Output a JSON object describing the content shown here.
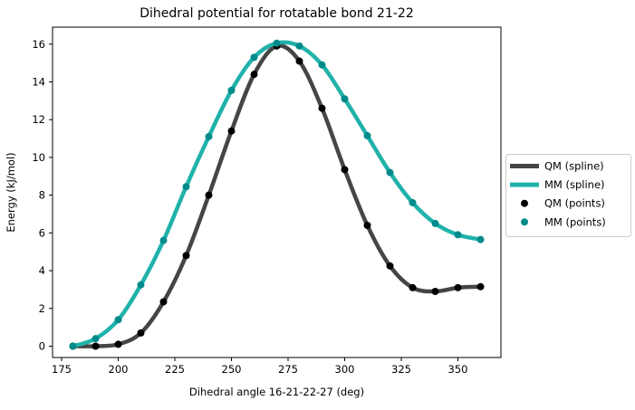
{
  "chart_data": {
    "type": "line",
    "subtype": "spline-with-scatter",
    "title": "Dihedral potential for rotatable bond 21-22",
    "xlabel": "Dihedral angle 16-21-22-27 (deg)",
    "ylabel": "Energy (kJ/mol)",
    "x": [
      180,
      190,
      200,
      210,
      220,
      230,
      240,
      250,
      260,
      270,
      280,
      290,
      300,
      310,
      320,
      330,
      340,
      350,
      360
    ],
    "series": [
      {
        "name": "QM (spline)",
        "kind": "spline",
        "color": "#454545",
        "line_width": 4.5,
        "values": [
          0.0,
          0.0,
          0.1,
          0.7,
          2.35,
          4.8,
          8.0,
          11.4,
          14.4,
          15.9,
          15.1,
          12.6,
          9.35,
          6.4,
          4.25,
          3.1,
          2.9,
          3.1,
          3.15
        ]
      },
      {
        "name": "MM (spline)",
        "kind": "spline",
        "color": "#20b2aa",
        "line_width": 4.5,
        "values": [
          0.0,
          0.4,
          1.4,
          3.25,
          5.6,
          8.45,
          11.1,
          13.55,
          15.3,
          16.05,
          15.9,
          14.9,
          13.1,
          11.15,
          9.2,
          7.6,
          6.5,
          5.9,
          5.65
        ]
      },
      {
        "name": "QM (points)",
        "kind": "scatter",
        "color": "#000000",
        "marker_radius": 4,
        "values": [
          0.0,
          0.0,
          0.1,
          0.7,
          2.35,
          4.8,
          8.0,
          11.4,
          14.4,
          15.9,
          15.1,
          12.6,
          9.35,
          6.4,
          4.25,
          3.1,
          2.9,
          3.1,
          3.15
        ]
      },
      {
        "name": "MM (points)",
        "kind": "scatter",
        "color": "#008b8b",
        "marker_radius": 4,
        "values": [
          0.0,
          0.4,
          1.4,
          3.25,
          5.6,
          8.45,
          11.1,
          13.55,
          15.3,
          16.05,
          15.9,
          14.9,
          13.1,
          11.15,
          9.2,
          7.6,
          6.5,
          5.9,
          5.65
        ]
      }
    ],
    "xticks": [
      175,
      200,
      225,
      250,
      275,
      300,
      325,
      350
    ],
    "yticks": [
      0,
      2,
      4,
      6,
      8,
      10,
      12,
      14,
      16
    ],
    "xlim": [
      171,
      369
    ],
    "ylim": [
      -0.6,
      16.9
    ],
    "grid": false,
    "background": "#ffffff",
    "spine_color": "#000000",
    "legend": {
      "position": "right-outside",
      "border_color": "#cccccc",
      "fill": "#ffffff",
      "entries": [
        "QM (spline)",
        "MM (spline)",
        "QM (points)",
        "MM (points)"
      ]
    },
    "draw_order": [
      0,
      2,
      1,
      3
    ]
  }
}
